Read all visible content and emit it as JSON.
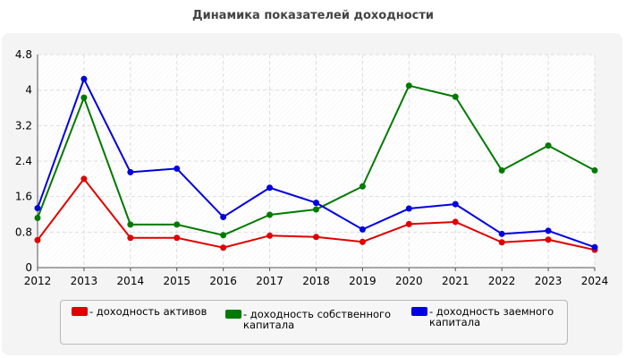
{
  "chart_data": {
    "type": "line",
    "title": "Динамика показателей доходности",
    "categories": [
      "2012",
      "2013",
      "2014",
      "2015",
      "2016",
      "2017",
      "2018",
      "2019",
      "2020",
      "2021",
      "2022",
      "2023",
      "2024"
    ],
    "ylim": [
      0,
      4.8
    ],
    "yticks": [
      "0",
      "0.8",
      "1.6",
      "2.4",
      "3.2",
      "4",
      "4.8"
    ],
    "grid": true,
    "legend_position": "bottom",
    "series": [
      {
        "name": "- доходность активов",
        "color": "#e00000",
        "values": [
          0.62,
          2.0,
          0.67,
          0.67,
          0.45,
          0.72,
          0.69,
          0.58,
          0.98,
          1.03,
          0.57,
          0.63,
          0.4
        ]
      },
      {
        "name": "- доходность собственного капитала",
        "color": "#007a00",
        "values": [
          1.12,
          3.83,
          0.97,
          0.97,
          0.73,
          1.19,
          1.31,
          1.83,
          4.1,
          3.85,
          2.19,
          2.75,
          2.19
        ]
      },
      {
        "name": "- доходность заемного капитала",
        "color": "#0000e0",
        "values": [
          1.34,
          4.25,
          2.15,
          2.23,
          1.14,
          1.8,
          1.46,
          0.86,
          1.33,
          1.43,
          0.76,
          0.83,
          0.46
        ]
      }
    ]
  },
  "legend": {
    "item0": {
      "line1": "- доходность активов",
      "line2": ""
    },
    "item1": {
      "line1": "- доходность собственного",
      "line2": "капитала"
    },
    "item2": {
      "line1": "- доходность заемного",
      "line2": "капитала"
    }
  }
}
